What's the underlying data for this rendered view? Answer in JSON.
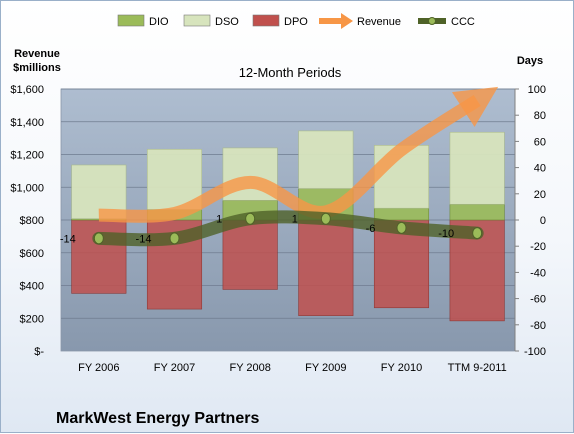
{
  "chart_data": {
    "type": "bar",
    "subtitle": "12-Month Periods",
    "company": "MarkWest Energy Partners",
    "left_axis_title": [
      "Revenue",
      "$millions"
    ],
    "right_axis_title": "Days",
    "categories": [
      "FY 2006",
      "FY 2007",
      "FY 2008",
      "FY 2009",
      "FY 2010",
      "TTM 9-2011"
    ],
    "left_ylim": [
      0,
      1600
    ],
    "left_ticks": [
      0,
      200,
      400,
      600,
      800,
      1000,
      1200,
      1400,
      1600
    ],
    "left_tick_labels": [
      "$-",
      "$200",
      "$400",
      "$600",
      "$800",
      "$1,000",
      "$1,200",
      "$1,400",
      "$1,600"
    ],
    "right_ylim": [
      -100,
      100
    ],
    "right_ticks": [
      -100,
      -80,
      -60,
      -40,
      -20,
      0,
      20,
      40,
      60,
      80,
      100
    ],
    "legend": [
      "DIO",
      "DSO",
      "DPO",
      "Revenue",
      "CCC"
    ],
    "legend_position": "top",
    "colors": {
      "DIO": "#9bbb59",
      "DSO": "#d7e4bd",
      "DPO": "#c0504d",
      "Revenue": "#f79646",
      "CCC": "#4f6228"
    },
    "series": [
      {
        "name": "DPO",
        "axis": "right",
        "values": [
          -56,
          -68,
          -53,
          -73,
          -67,
          -77
        ]
      },
      {
        "name": "DIO",
        "axis": "right",
        "values": [
          1,
          8,
          15,
          24,
          9,
          12
        ]
      },
      {
        "name": "DSO",
        "axis": "right",
        "values": [
          41,
          46,
          40,
          44,
          48,
          55
        ]
      },
      {
        "name": "CCC",
        "axis": "right",
        "values": [
          -14,
          -14,
          1,
          1,
          -6,
          -10
        ],
        "labels": [
          "-14",
          "-14",
          "1",
          "1",
          "-6",
          "-10"
        ]
      },
      {
        "name": "Revenue",
        "axis": "left",
        "values": [
          830,
          840,
          1030,
          850,
          1230,
          1530
        ]
      }
    ]
  }
}
